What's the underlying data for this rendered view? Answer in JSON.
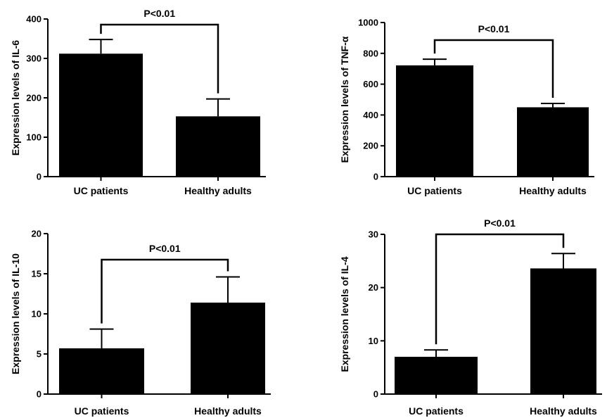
{
  "chart_data": [
    {
      "type": "bar",
      "categories": [
        "UC patients",
        "Healthy adults"
      ],
      "values": [
        312,
        153
      ],
      "errors": [
        36,
        44
      ],
      "ylabel": "Expression levels of IL-6",
      "ylim": [
        0,
        400
      ],
      "yticks": [
        0,
        100,
        200,
        300,
        400
      ],
      "annotation": "P<0.01",
      "bar_color": "#000000",
      "grid": false
    },
    {
      "type": "bar",
      "categories": [
        "UC patients",
        "Healthy adults"
      ],
      "values": [
        722,
        450
      ],
      "errors": [
        40,
        25
      ],
      "ylabel": "Expression levels of TNF-α",
      "ylim": [
        0,
        1000
      ],
      "yticks": [
        0,
        200,
        400,
        600,
        800,
        1000
      ],
      "annotation": "P<0.01",
      "bar_color": "#000000",
      "grid": false
    },
    {
      "type": "bar",
      "categories": [
        "UC patients",
        "Healthy adults"
      ],
      "values": [
        5.7,
        11.4
      ],
      "errors": [
        2.4,
        3.2
      ],
      "ylabel": "Expression levels of IL-10",
      "ylim": [
        0,
        20
      ],
      "yticks": [
        0,
        5,
        10,
        15,
        20
      ],
      "annotation": "P<0.01",
      "bar_color": "#000000",
      "grid": false
    },
    {
      "type": "bar",
      "categories": [
        "UC patients",
        "Healthy adults"
      ],
      "values": [
        7.0,
        23.6
      ],
      "errors": [
        1.3,
        2.8
      ],
      "ylabel": "Expression levels of IL-4",
      "ylim": [
        0,
        30
      ],
      "yticks": [
        0,
        10,
        20,
        30
      ],
      "annotation": "P<0.01",
      "bar_color": "#000000",
      "grid": false
    }
  ]
}
